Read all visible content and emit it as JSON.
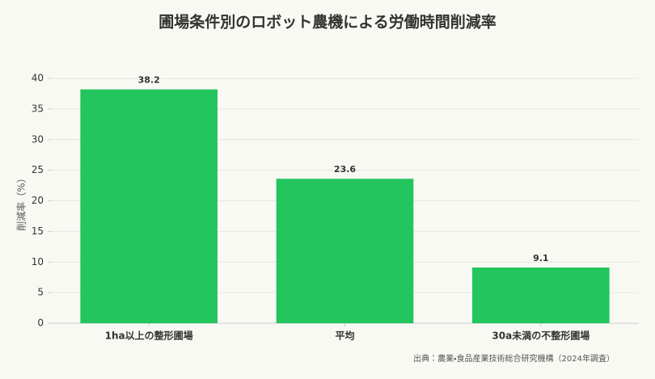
{
  "chart_data": {
    "type": "bar",
    "title": "圃場条件別のロボット農機による労働時間削減率",
    "y_label": "削減率（%）",
    "categories": [
      "1ha以上の整形圃場",
      "平均",
      "30a未満の不整形圃場"
    ],
    "values": [
      38.2,
      23.6,
      9.1
    ],
    "color": "#22c55e",
    "ylim": [
      0,
      40
    ],
    "yticks": [
      0,
      5,
      10,
      15,
      20,
      25,
      30,
      35,
      40
    ],
    "grid": true,
    "source": "出典：農業・食品産業技術総合研究機構（2024年調査）"
  }
}
